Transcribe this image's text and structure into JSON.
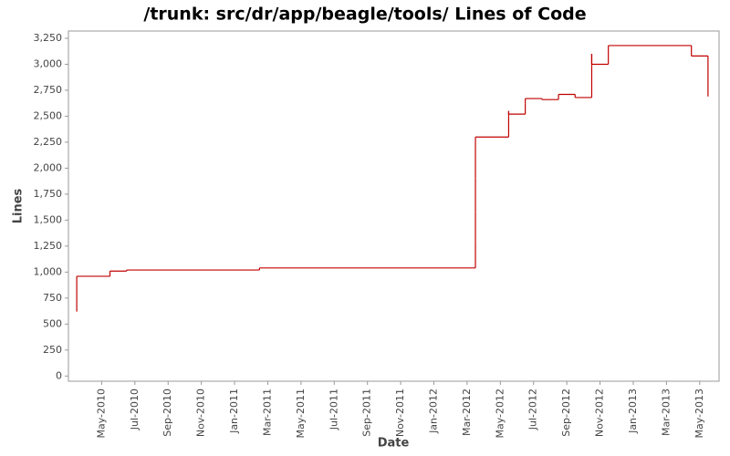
{
  "chart_data": {
    "type": "line",
    "step": true,
    "title": "/trunk: src/dr/app/beagle/tools/ Lines of Code",
    "x_label": "Date",
    "y_label": "Lines",
    "x": [
      "2010-03",
      "2010-03",
      "2010-05",
      "2010-06",
      "2011-02",
      "2012-03",
      "2012-03",
      "2012-03",
      "2012-03",
      "2012-03",
      "2012-05",
      "2012-05",
      "2012-05",
      "2012-05",
      "2012-06",
      "2012-06",
      "2012-07",
      "2012-08",
      "2012-09",
      "2012-10",
      "2012-10",
      "2012-10",
      "2012-11",
      "2012-11",
      "2013-04",
      "2013-05"
    ],
    "values": [
      620,
      960,
      1010,
      1020,
      1040,
      1300,
      1580,
      1900,
      2100,
      2300,
      2420,
      2500,
      2550,
      2520,
      2620,
      2670,
      2660,
      2710,
      2680,
      2980,
      3100,
      3000,
      3070,
      3180,
      3080,
      2690
    ],
    "color": "#c00000",
    "xlim": [
      "2010-03",
      "2013-06"
    ],
    "xticks": [
      {
        "value": "2010-05",
        "label": "May-2010"
      },
      {
        "value": "2010-07",
        "label": "Jul-2010"
      },
      {
        "value": "2010-09",
        "label": "Sep-2010"
      },
      {
        "value": "2010-11",
        "label": "Nov-2010"
      },
      {
        "value": "2011-01",
        "label": "Jan-2011"
      },
      {
        "value": "2011-03",
        "label": "Mar-2011"
      },
      {
        "value": "2011-05",
        "label": "May-2011"
      },
      {
        "value": "2011-07",
        "label": "Jul-2011"
      },
      {
        "value": "2011-09",
        "label": "Sep-2011"
      },
      {
        "value": "2011-11",
        "label": "Nov-2011"
      },
      {
        "value": "2012-01",
        "label": "Jan-2012"
      },
      {
        "value": "2012-03",
        "label": "Mar-2012"
      },
      {
        "value": "2012-05",
        "label": "May-2012"
      },
      {
        "value": "2012-07",
        "label": "Jul-2012"
      },
      {
        "value": "2012-09",
        "label": "Sep-2012"
      },
      {
        "value": "2012-11",
        "label": "Nov-2012"
      },
      {
        "value": "2013-01",
        "label": "Jan-2013"
      },
      {
        "value": "2013-03",
        "label": "Mar-2013"
      },
      {
        "value": "2013-05",
        "label": "May-2013"
      }
    ],
    "ylim": [
      -50,
      3320
    ],
    "yticks": [
      0,
      250,
      500,
      750,
      {
        "value": 1000,
        "label": "1,000"
      },
      {
        "value": 1250,
        "label": "1,250"
      },
      {
        "value": 1500,
        "label": "1,500"
      },
      {
        "value": 1750,
        "label": "1,750"
      },
      {
        "value": 2000,
        "label": "2,000"
      },
      {
        "value": 2250,
        "label": "2,250"
      },
      {
        "value": 2500,
        "label": "2,500"
      },
      {
        "value": 2750,
        "label": "2,750"
      },
      {
        "value": 3000,
        "label": "3,000"
      },
      {
        "value": 3250,
        "label": "3,250"
      }
    ],
    "grid": false
  }
}
